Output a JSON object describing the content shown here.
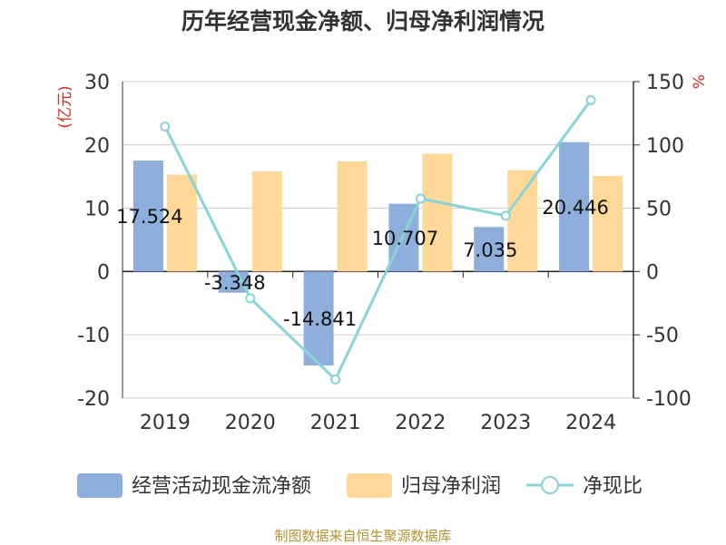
{
  "source_note": "制图数据来自恒生聚源数据库",
  "colors": {
    "operating_cash_flow": "#8eaedb",
    "parent_net_profit": "#fdd898",
    "ratio": "#87d5d6",
    "axis_unit": "#e0281e",
    "text": "#333333",
    "grid": "#cccccc"
  },
  "chart_data": {
    "type": "bar",
    "title": "历年经营现金净额、归母净利润情况",
    "categories": [
      "2019",
      "2020",
      "2021",
      "2022",
      "2023",
      "2024"
    ],
    "y_left_label": "(亿元)",
    "y_right_label": "%",
    "ylim_left": [
      -20,
      30
    ],
    "ylim_right": [
      -100,
      150
    ],
    "y_left_ticks": [
      30,
      20,
      10,
      0,
      -10,
      -20
    ],
    "y_right_ticks": [
      150,
      100,
      50,
      0,
      -50,
      -100
    ],
    "grid": true,
    "legend_position": "bottom",
    "series": [
      {
        "name": "经营活动现金流净额",
        "type": "bar",
        "axis": "left",
        "values": [
          17.524,
          -3.348,
          -14.841,
          10.707,
          7.035,
          20.446
        ],
        "labels": [
          "17.524",
          "-3.348",
          "-14.841",
          "10.707",
          "7.035",
          "20.446"
        ]
      },
      {
        "name": "归母净利润",
        "type": "bar",
        "axis": "left",
        "values": [
          15.3,
          15.8,
          17.4,
          18.6,
          16.0,
          15.1
        ]
      },
      {
        "name": "净现比",
        "type": "line",
        "axis": "right",
        "values": [
          114.5,
          -21.2,
          -85.3,
          57.6,
          44.0,
          135.4
        ]
      }
    ]
  }
}
